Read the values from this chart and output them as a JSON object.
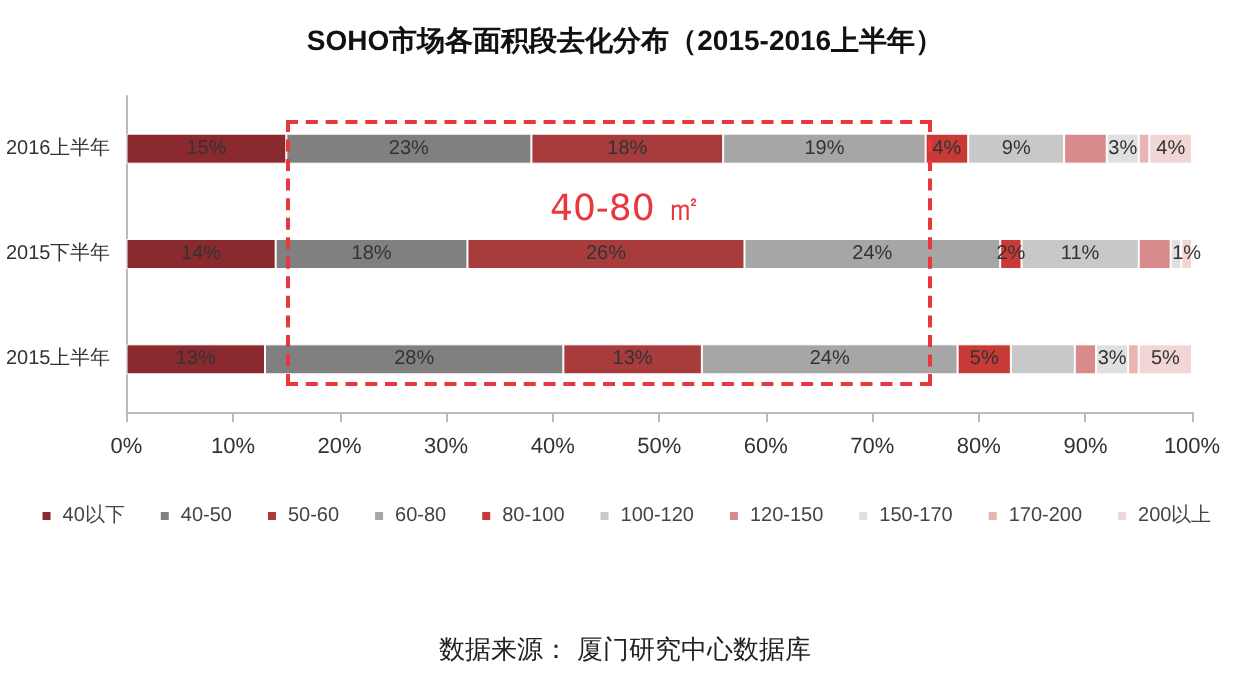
{
  "chart_data": {
    "type": "bar",
    "orientation": "horizontal",
    "stacked": true,
    "title": "SOHO市场各面积段去化分布（2015-2016上半年）",
    "categories": [
      "2016上半年",
      "2015下半年",
      "2015上半年"
    ],
    "series": [
      {
        "name": "40以下",
        "color": "#8b2a2e",
        "values": [
          15,
          14,
          13
        ],
        "value_labels": [
          "15%",
          "14%",
          "13%"
        ]
      },
      {
        "name": "40-50",
        "color": "#808080",
        "values": [
          23,
          18,
          28
        ],
        "value_labels": [
          "23%",
          "18%",
          "28%"
        ]
      },
      {
        "name": "50-60",
        "color": "#a83c3c",
        "values": [
          18,
          26,
          13
        ],
        "value_labels": [
          "18%",
          "26%",
          "13%"
        ]
      },
      {
        "name": "60-80",
        "color": "#a6a6a6",
        "values": [
          19,
          24,
          24
        ],
        "value_labels": [
          "19%",
          "24%",
          "24%"
        ]
      },
      {
        "name": "80-100",
        "color": "#c83a36",
        "values": [
          4,
          2,
          5
        ],
        "value_labels": [
          "4%",
          "2%",
          "5%"
        ]
      },
      {
        "name": "100-120",
        "color": "#c8c8c8",
        "values": [
          9,
          11,
          6
        ],
        "value_labels": [
          "9%",
          "11%",
          null
        ]
      },
      {
        "name": "120-150",
        "color": "#d98a8a",
        "values": [
          4,
          3,
          2
        ],
        "value_labels": [
          null,
          null,
          null
        ]
      },
      {
        "name": "150-170",
        "color": "#e0e0e0",
        "values": [
          3,
          1,
          3
        ],
        "value_labels": [
          "3%",
          null,
          "3%"
        ]
      },
      {
        "name": "170-200",
        "color": "#e8b4b4",
        "values": [
          1,
          0,
          1
        ],
        "value_labels": [
          null,
          null,
          null
        ]
      },
      {
        "name": "200以上",
        "color": "#f2d6d6",
        "values": [
          4,
          1,
          5
        ],
        "value_labels": [
          "4%",
          "1%",
          "5%"
        ]
      }
    ],
    "xlim": [
      0,
      100
    ],
    "xticks": [
      {
        "value": 0,
        "label": "0%"
      },
      {
        "value": 10,
        "label": "10%"
      },
      {
        "value": 20,
        "label": "20%"
      },
      {
        "value": 30,
        "label": "30%"
      },
      {
        "value": 40,
        "label": "40%"
      },
      {
        "value": 50,
        "label": "50%"
      },
      {
        "value": 60,
        "label": "60%"
      },
      {
        "value": 70,
        "label": "70%"
      },
      {
        "value": 80,
        "label": "80%"
      },
      {
        "value": 90,
        "label": "90%"
      },
      {
        "value": 100,
        "label": "100%"
      }
    ],
    "annotations": [
      "40-80 ㎡",
      "数据来源： 厦门研究中心数据库"
    ],
    "legend": "bottom",
    "grid": false
  }
}
